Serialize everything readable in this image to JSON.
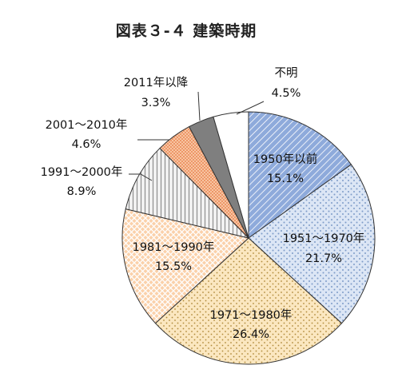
{
  "chart_data": {
    "type": "pie",
    "title": "図表３-４ 建築時期",
    "start_angle_deg": 0,
    "direction": "clockwise",
    "slices": [
      {
        "name": "1950年以前",
        "value": 15.1,
        "value_label": "15.1%",
        "fill": "#8eaadb",
        "pattern": "diagonal-hatch"
      },
      {
        "name": "1951～1970年",
        "value": 21.7,
        "value_label": "21.7%",
        "fill": "#dce6f5",
        "pattern": "dots"
      },
      {
        "name": "1971～1980年",
        "value": 26.4,
        "value_label": "26.4%",
        "fill": "#fbe7c0",
        "pattern": "dots"
      },
      {
        "name": "1981～1990年",
        "value": 15.5,
        "value_label": "15.5%",
        "fill": "#fbd1aa",
        "pattern": "crosshatch"
      },
      {
        "name": "1991～2000年",
        "value": 8.9,
        "value_label": "8.9%",
        "fill": "#ececec",
        "pattern": "vertical-lines"
      },
      {
        "name": "2001～2010年",
        "value": 4.6,
        "value_label": "4.6%",
        "fill": "#ea8b5a",
        "pattern": "fine-grid"
      },
      {
        "name": "2011年以降",
        "value": 3.3,
        "value_label": "3.3%",
        "fill": "#7f7f7f",
        "pattern": "solid"
      },
      {
        "name": "不明",
        "value": 4.5,
        "value_label": "4.5%",
        "fill": "#ffffff",
        "pattern": "solid"
      }
    ]
  }
}
